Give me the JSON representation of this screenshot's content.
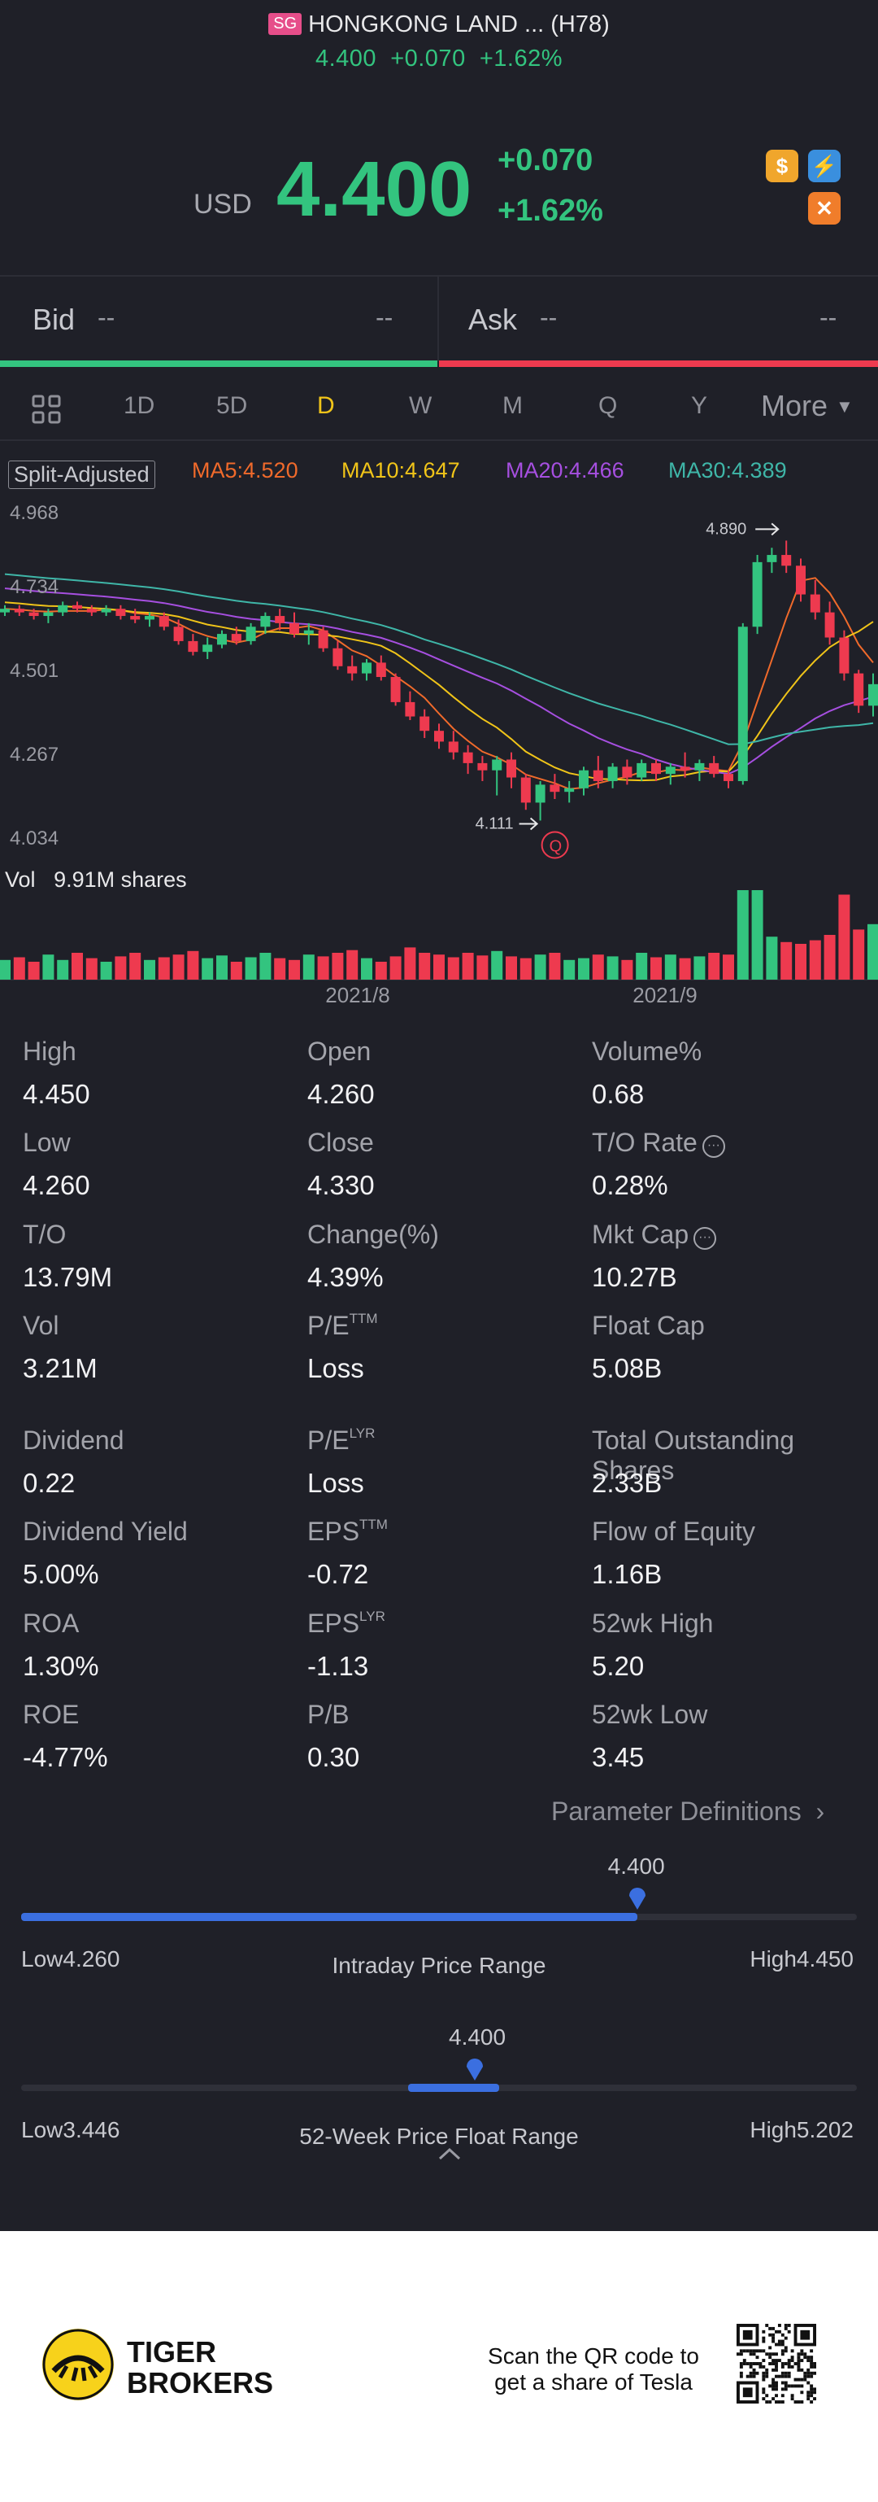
{
  "header": {
    "market_badge": "SG",
    "title": "HONGKONG LAND ... (H78)",
    "sub_price": "4.400",
    "sub_change": "+0.070",
    "sub_pct": "+1.62%"
  },
  "quote": {
    "currency": "USD",
    "price": "4.400",
    "change": "+0.070",
    "change_pct": "+1.62%"
  },
  "bidask": {
    "bid_label": "Bid",
    "bid_size": "--",
    "bid_price": "--",
    "ask_label": "Ask",
    "ask_size": "--",
    "ask_price": "--"
  },
  "tabs": [
    "1D",
    "5D",
    "D",
    "W",
    "M",
    "Q",
    "Y",
    "More"
  ],
  "selected_tab": "D",
  "ma": {
    "split": "Split-Adjusted",
    "ma5": "MA5:4.520",
    "ma10": "MA10:4.647",
    "ma20": "MA20:4.466",
    "ma30": "MA30:4.389"
  },
  "colors": {
    "up": "#33c47f",
    "down": "#ee3a4f",
    "ma5": "#f06a2b",
    "ma10": "#f0c419",
    "ma20": "#a64fe0",
    "ma30": "#3fb6a8",
    "accent": "#3b6fe0"
  },
  "chart_data": {
    "type": "candlestick",
    "y_ticks": [
      "4.968",
      "4.734",
      "4.501",
      "4.267",
      "4.034"
    ],
    "ylim": [
      4.034,
      4.968
    ],
    "x_ticks": [
      "2021/8",
      "2021/9"
    ],
    "max_label": "4.890",
    "min_label": "4.111",
    "volume_label": "Vol",
    "volume_value": "9.91M shares",
    "candles": [
      [
        4.69,
        4.71,
        4.68,
        4.7
      ],
      [
        4.7,
        4.71,
        4.68,
        4.69
      ],
      [
        4.69,
        4.7,
        4.67,
        4.68
      ],
      [
        4.68,
        4.7,
        4.66,
        4.69
      ],
      [
        4.69,
        4.72,
        4.68,
        4.71
      ],
      [
        4.71,
        4.72,
        4.69,
        4.7
      ],
      [
        4.7,
        4.71,
        4.68,
        4.69
      ],
      [
        4.69,
        4.71,
        4.68,
        4.7
      ],
      [
        4.7,
        4.71,
        4.67,
        4.68
      ],
      [
        4.68,
        4.7,
        4.66,
        4.67
      ],
      [
        4.67,
        4.69,
        4.65,
        4.68
      ],
      [
        4.68,
        4.69,
        4.64,
        4.65
      ],
      [
        4.65,
        4.67,
        4.6,
        4.61
      ],
      [
        4.61,
        4.63,
        4.57,
        4.58
      ],
      [
        4.58,
        4.62,
        4.56,
        4.6
      ],
      [
        4.6,
        4.64,
        4.59,
        4.63
      ],
      [
        4.63,
        4.65,
        4.6,
        4.61
      ],
      [
        4.61,
        4.66,
        4.6,
        4.65
      ],
      [
        4.65,
        4.69,
        4.63,
        4.68
      ],
      [
        4.68,
        4.7,
        4.64,
        4.66
      ],
      [
        4.66,
        4.69,
        4.62,
        4.63
      ],
      [
        4.63,
        4.66,
        4.6,
        4.64
      ],
      [
        4.64,
        4.65,
        4.58,
        4.59
      ],
      [
        4.59,
        4.61,
        4.53,
        4.54
      ],
      [
        4.54,
        4.57,
        4.5,
        4.52
      ],
      [
        4.52,
        4.56,
        4.5,
        4.55
      ],
      [
        4.55,
        4.57,
        4.5,
        4.51
      ],
      [
        4.51,
        4.52,
        4.43,
        4.44
      ],
      [
        4.44,
        4.47,
        4.39,
        4.4
      ],
      [
        4.4,
        4.42,
        4.34,
        4.36
      ],
      [
        4.36,
        4.38,
        4.31,
        4.33
      ],
      [
        4.33,
        4.36,
        4.28,
        4.3
      ],
      [
        4.3,
        4.32,
        4.24,
        4.27
      ],
      [
        4.27,
        4.29,
        4.22,
        4.25
      ],
      [
        4.25,
        4.29,
        4.18,
        4.28
      ],
      [
        4.28,
        4.3,
        4.2,
        4.23
      ],
      [
        4.23,
        4.24,
        4.14,
        4.16
      ],
      [
        4.16,
        4.22,
        4.11,
        4.21
      ],
      [
        4.21,
        4.24,
        4.17,
        4.19
      ],
      [
        4.19,
        4.22,
        4.16,
        4.2
      ],
      [
        4.2,
        4.26,
        4.18,
        4.25
      ],
      [
        4.25,
        4.29,
        4.2,
        4.22
      ],
      [
        4.22,
        4.27,
        4.2,
        4.26
      ],
      [
        4.26,
        4.28,
        4.21,
        4.23
      ],
      [
        4.23,
        4.28,
        4.22,
        4.27
      ],
      [
        4.27,
        4.28,
        4.22,
        4.24
      ],
      [
        4.24,
        4.27,
        4.21,
        4.26
      ],
      [
        4.26,
        4.3,
        4.23,
        4.25
      ],
      [
        4.25,
        4.28,
        4.22,
        4.27
      ],
      [
        4.27,
        4.29,
        4.23,
        4.24
      ],
      [
        4.24,
        4.25,
        4.2,
        4.22
      ],
      [
        4.22,
        4.66,
        4.21,
        4.65
      ],
      [
        4.65,
        4.85,
        4.63,
        4.83
      ],
      [
        4.83,
        4.87,
        4.8,
        4.85
      ],
      [
        4.85,
        4.89,
        4.8,
        4.82
      ],
      [
        4.82,
        4.84,
        4.72,
        4.74
      ],
      [
        4.74,
        4.78,
        4.67,
        4.69
      ],
      [
        4.69,
        4.72,
        4.6,
        4.62
      ],
      [
        4.62,
        4.64,
        4.5,
        4.52
      ],
      [
        4.52,
        4.53,
        4.41,
        4.43
      ],
      [
        4.43,
        4.52,
        4.4,
        4.49
      ]
    ],
    "volumes": [
      0.22,
      0.25,
      0.2,
      0.28,
      0.22,
      0.3,
      0.24,
      0.2,
      0.26,
      0.3,
      0.22,
      0.25,
      0.28,
      0.32,
      0.24,
      0.27,
      0.2,
      0.25,
      0.3,
      0.24,
      0.22,
      0.28,
      0.26,
      0.3,
      0.33,
      0.24,
      0.2,
      0.26,
      0.36,
      0.3,
      0.28,
      0.25,
      0.3,
      0.27,
      0.32,
      0.26,
      0.24,
      0.28,
      0.3,
      0.22,
      0.24,
      0.28,
      0.26,
      0.22,
      0.3,
      0.25,
      0.28,
      0.24,
      0.26,
      0.3,
      0.28,
      1.0,
      1.0,
      0.48,
      0.42,
      0.4,
      0.44,
      0.5,
      0.95,
      0.56,
      0.62
    ]
  },
  "stats": [
    [
      {
        "label": "High",
        "value": "4.450"
      },
      {
        "label": "Open",
        "value": "4.260"
      },
      {
        "label": "Volume%",
        "value": "0.68"
      }
    ],
    [
      {
        "label": "Low",
        "value": "4.260"
      },
      {
        "label": "Close",
        "value": "4.330"
      },
      {
        "label": "T/O Rate",
        "value": "0.28%"
      }
    ],
    [
      {
        "label": "T/O",
        "value": "13.79M"
      },
      {
        "label": "Change(%)",
        "value": "4.39%"
      },
      {
        "label": "Mkt Cap",
        "value": "10.27B"
      }
    ],
    [
      {
        "label": "Vol",
        "value": "3.21M"
      },
      {
        "label": "P/E",
        "sup": "TTM",
        "value": "Loss"
      },
      {
        "label": "Float Cap",
        "value": "5.08B"
      }
    ],
    [
      {
        "label": "Dividend",
        "value": "0.22"
      },
      {
        "label": "P/E",
        "sup": "LYR",
        "value": "Loss"
      },
      {
        "label": "Total Outstanding Shares",
        "value": "2.33B"
      }
    ],
    [
      {
        "label": "Dividend Yield",
        "value": "5.00%"
      },
      {
        "label": "EPS",
        "sup": "TTM",
        "value": "-0.72"
      },
      {
        "label": "Flow of Equity",
        "value": "1.16B"
      }
    ],
    [
      {
        "label": "ROA",
        "value": "1.30%"
      },
      {
        "label": "EPS",
        "sup": "LYR",
        "value": "-1.13"
      },
      {
        "label": "52wk High",
        "value": "5.20"
      }
    ],
    [
      {
        "label": "ROE",
        "value": "-4.77%"
      },
      {
        "label": "P/B",
        "value": "0.30"
      },
      {
        "label": "52wk Low",
        "value": "3.45"
      }
    ]
  ],
  "param_definitions": "Parameter Definitions",
  "intraday": {
    "value": "4.400",
    "low": "Low4.260",
    "high": "High4.450",
    "title": "Intraday Price Range",
    "position": 0.737
  },
  "week52": {
    "value": "4.400",
    "low": "Low3.446",
    "high": "High5.202",
    "title": "52-Week Price Float Range",
    "position": 0.543
  },
  "footer": {
    "brand_line1": "TIGER",
    "brand_line2": "BROKERS",
    "scan_line1": "Scan the QR code to",
    "scan_line2": "get a share of Tesla"
  }
}
